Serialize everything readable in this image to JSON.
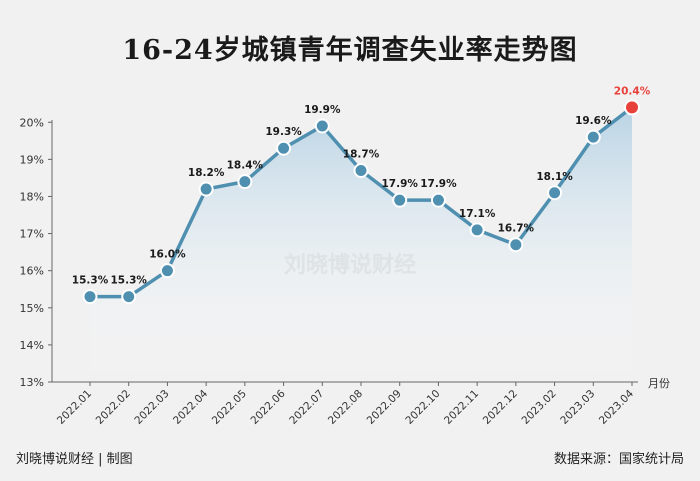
{
  "title": "16-24岁城镇青年调查失业率走势图",
  "watermark": "刘晓博说财经",
  "footer_left": "刘晓博说财经 | 制图",
  "footer_right": "数据来源：国家统计局",
  "colors": {
    "line": "#4f8fb0",
    "marker": "#4f8fb0",
    "highlight": "#e8413c",
    "area_top": "#b9d3e4",
    "area_bottom": "#ffffff"
  },
  "chart_data": {
    "type": "line",
    "x": [
      "2022.01",
      "2022.02",
      "2022.03",
      "2022.04",
      "2022.05",
      "2022.06",
      "2022.07",
      "2022.08",
      "2022.09",
      "2022.10",
      "2022.11",
      "2022.12",
      "2023.02",
      "2023.03",
      "2023.04"
    ],
    "values": [
      15.3,
      15.3,
      16.0,
      18.2,
      18.4,
      19.3,
      19.9,
      18.7,
      17.9,
      17.9,
      17.1,
      16.7,
      18.1,
      19.6,
      20.4
    ],
    "labels": [
      "15.3%",
      "15.3%",
      "16.0%",
      "18.2%",
      "18.4%",
      "19.3%",
      "19.9%",
      "18.7%",
      "17.9%",
      "17.9%",
      "17.1%",
      "16.7%",
      "18.1%",
      "19.6%",
      "20.4%"
    ],
    "yticks": [
      "13%",
      "14%",
      "15%",
      "16%",
      "17%",
      "18%",
      "19%",
      "20%"
    ],
    "ylim": [
      13,
      20.6
    ],
    "xunit": "月份",
    "highlight_index": 14
  }
}
